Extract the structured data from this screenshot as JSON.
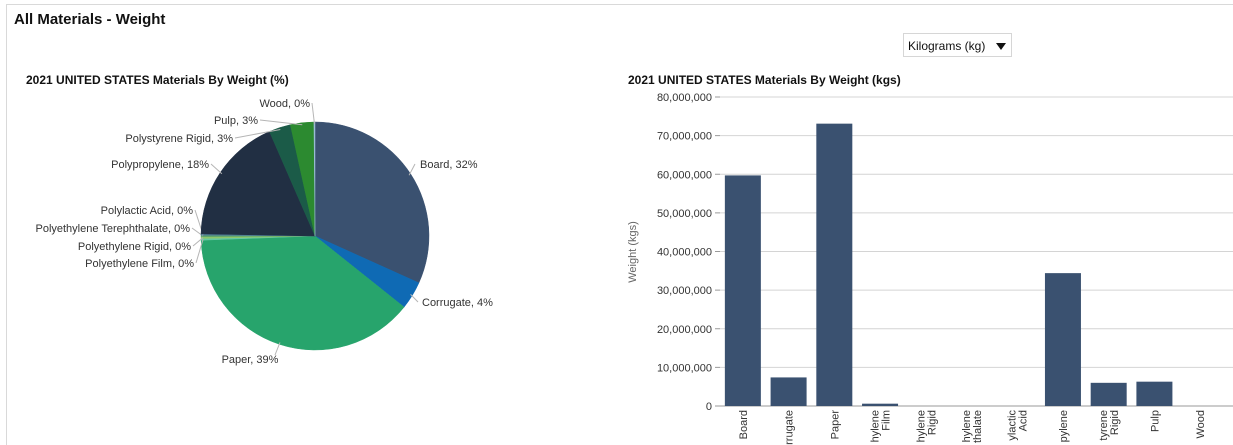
{
  "page": {
    "title": "All Materials - Weight"
  },
  "unit_select": {
    "value": "Kilograms (kg)",
    "icon": "caret-down-icon"
  },
  "chart_data": [
    {
      "type": "pie",
      "title": "2021 UNITED STATES Materials By Weight (%)",
      "slices": [
        {
          "label": "Board, 32%",
          "value": 32.0,
          "color": "#3a5170"
        },
        {
          "label": "Corrugate, 4%",
          "value": 4.0,
          "color": "#0f6ab4"
        },
        {
          "label": "Paper, 39%",
          "value": 39.0,
          "color": "#27a46c"
        },
        {
          "label": "Polyethylene Film, 0%",
          "value": 0.25,
          "color": "#66c9a2"
        },
        {
          "label": "Polyethylene Rigid, 0%",
          "value": 0.25,
          "color": "#8ec76a"
        },
        {
          "label": "Polyethylene Terephthalate, 0%",
          "value": 0.2,
          "color": "#5da36b"
        },
        {
          "label": "Polylactic Acid, 0%",
          "value": 0.2,
          "color": "#4d7d96"
        },
        {
          "label": "Polypropylene, 18%",
          "value": 18.3,
          "color": "#212f43"
        },
        {
          "label": "Polystyrene Rigid, 3%",
          "value": 3.1,
          "color": "#1b5b48"
        },
        {
          "label": "Pulp, 3%",
          "value": 3.35,
          "color": "#2c8a30"
        },
        {
          "label": "Wood, 0%",
          "value": 0.15,
          "color": "#9bbcd6"
        }
      ]
    },
    {
      "type": "bar",
      "title": "2021 UNITED STATES Materials By Weight (kgs)",
      "ylabel": "Weight (kgs)",
      "ylim": [
        0,
        80000000
      ],
      "yticks": [
        "0",
        "10,000,000",
        "20,000,000",
        "30,000,000",
        "40,000,000",
        "50,000,000",
        "60,000,000",
        "70,000,000",
        "80,000,000"
      ],
      "categories": [
        {
          "lines": [
            "Board"
          ]
        },
        {
          "lines": [
            "rrugate"
          ]
        },
        {
          "lines": [
            "Paper"
          ]
        },
        {
          "lines": [
            "hylene",
            "Film"
          ]
        },
        {
          "lines": [
            "hylene",
            "Rigid"
          ]
        },
        {
          "lines": [
            "hylene",
            "thalate"
          ]
        },
        {
          "lines": [
            "ylactic",
            "Acid"
          ]
        },
        {
          "lines": [
            "pylene"
          ]
        },
        {
          "lines": [
            "tyrene",
            "Rigid"
          ]
        },
        {
          "lines": [
            "Pulp"
          ]
        },
        {
          "lines": [
            "Wood"
          ]
        }
      ],
      "values": [
        59700000,
        7400000,
        73100000,
        600000,
        0,
        0,
        0,
        34400000,
        6000000,
        6300000,
        0
      ],
      "bar_color": "#3a5170"
    }
  ]
}
